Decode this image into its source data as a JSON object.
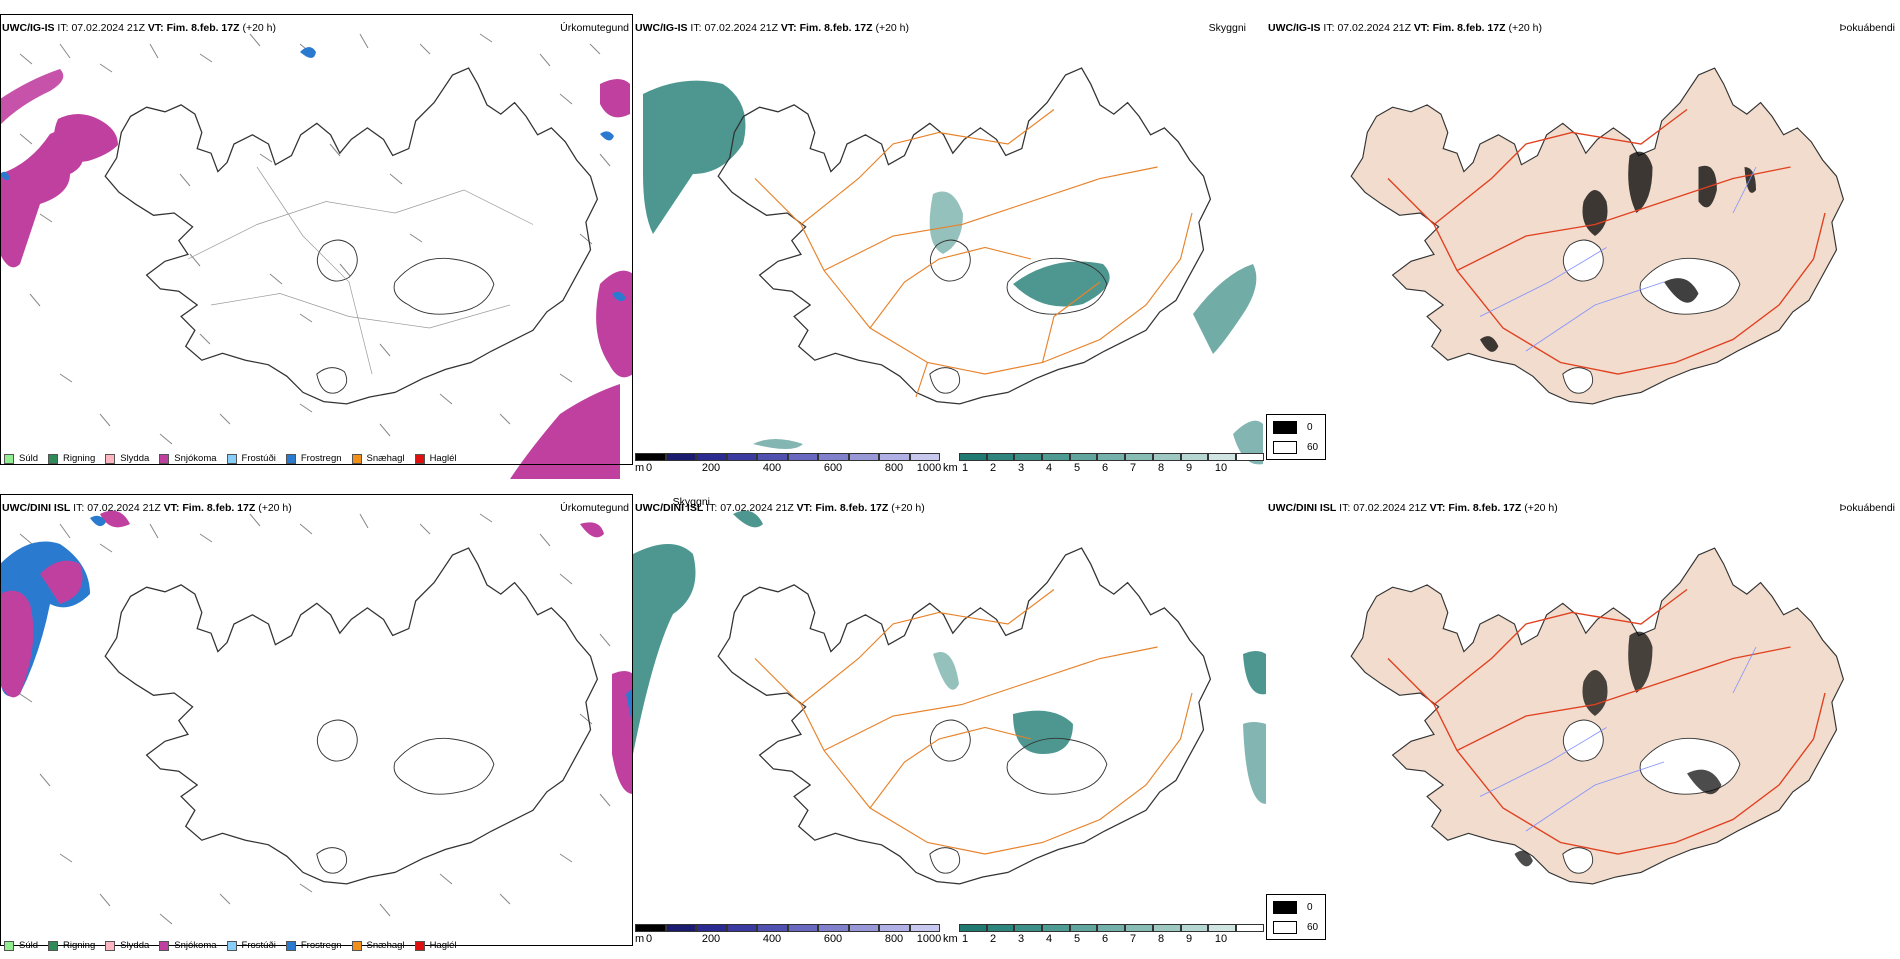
{
  "rows": [
    {
      "model": "UWC/IG-IS",
      "it_label": "IT:",
      "it_value": "07.02.2024 21Z",
      "vt_label": "VT:",
      "vt_value": "Fim. 8.feb. 17Z",
      "lead": "(+20 h)"
    },
    {
      "model": "UWC/DINI ISL",
      "it_label": "IT:",
      "it_value": "07.02.2024 21Z",
      "vt_label": "VT:",
      "vt_value": "Fim. 8.feb. 17Z",
      "lead": "(+20 h)"
    }
  ],
  "panels": {
    "precip": {
      "title": "Úrkomutegund"
    },
    "visibility": {
      "title": "Skyggni"
    },
    "fog": {
      "title": "Þokuábendi"
    }
  },
  "precip_legend": [
    {
      "label": "Súld",
      "color": "#90ee90"
    },
    {
      "label": "Rigning",
      "color": "#2e8b57"
    },
    {
      "label": "Slydda",
      "color": "#ffb6c1"
    },
    {
      "label": "Snjókoma",
      "color": "#c040a0"
    },
    {
      "label": "Frostúði",
      "color": "#87cefa"
    },
    {
      "label": "Frostregn",
      "color": "#2a7bd0"
    },
    {
      "label": "Snæhagl",
      "color": "#f0901a"
    },
    {
      "label": "Haglél",
      "color": "#e01010"
    }
  ],
  "cloudbase_scale": {
    "unit": "m",
    "ticks": [
      "0",
      "200",
      "400",
      "600",
      "800",
      "1000"
    ],
    "colors": [
      "#000000",
      "#1a1a6e",
      "#2a2a90",
      "#3a3aa0",
      "#5050b0",
      "#6868c0",
      "#8080cc",
      "#9898d8",
      "#b0b0e4",
      "#c8c8ee"
    ]
  },
  "visibility_scale": {
    "unit": "km",
    "ticks": [
      "1",
      "2",
      "3",
      "4",
      "5",
      "6",
      "7",
      "8",
      "9",
      "10"
    ],
    "colors": [
      "#1f7a72",
      "#2e857d",
      "#3d9088",
      "#4e9b93",
      "#60a69e",
      "#73b1aa",
      "#88bdb6",
      "#9ec9c3",
      "#b6d6d1",
      "#d0e5e2",
      "#ffffff"
    ]
  },
  "fog_scale": {
    "items": [
      {
        "value": "0",
        "color": "#000000"
      },
      {
        "value": "60",
        "color": "#ffffff"
      }
    ]
  },
  "map_colors": {
    "snow": "#c040a0",
    "freezing_rain": "#2a7bd0",
    "visibility_teal": "#2e857d",
    "roads": "#e8822a",
    "fog_land": "#f2dccd",
    "fog_roads": "#e04020",
    "rivers": "#8090ff"
  }
}
